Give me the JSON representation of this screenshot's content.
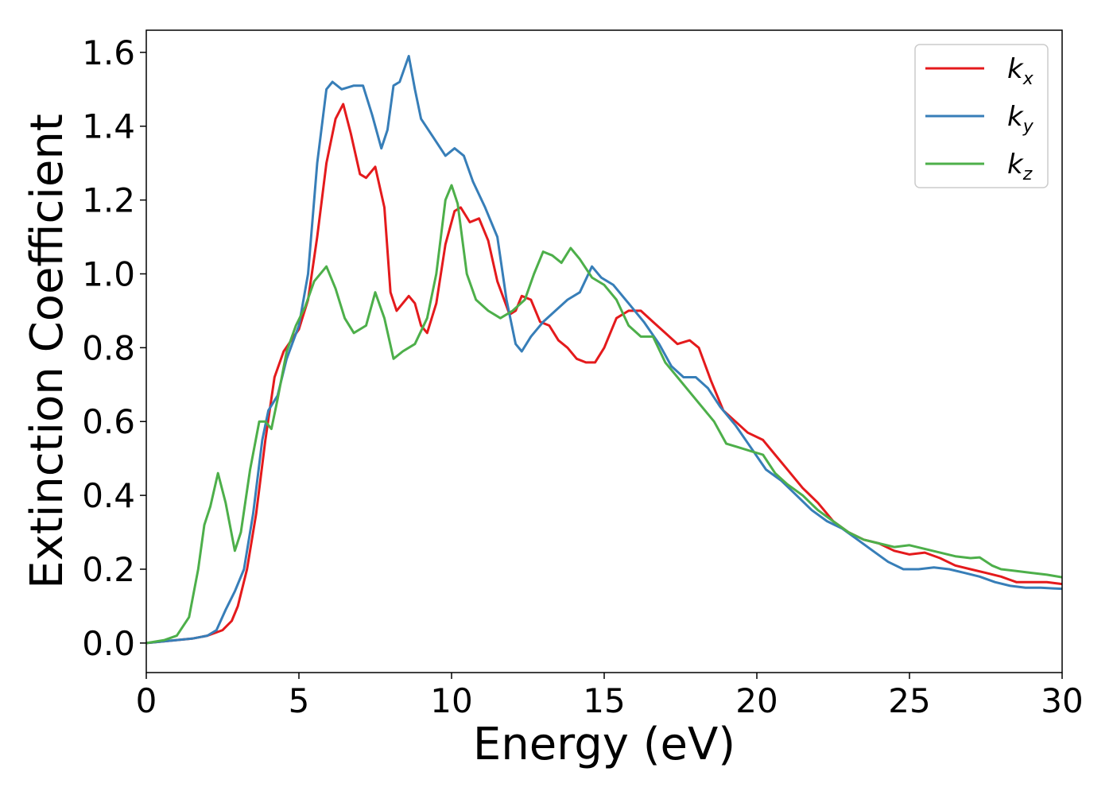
{
  "chart_data": {
    "type": "line",
    "xlabel": "Energy (eV)",
    "ylabel": "Extinction Coefficient",
    "xlim": [
      0,
      30
    ],
    "ylim": [
      -0.08,
      1.66
    ],
    "xticks": [
      0,
      5,
      10,
      15,
      20,
      25,
      30
    ],
    "xtick_labels": [
      "0",
      "5",
      "10",
      "15",
      "20",
      "25",
      "30"
    ],
    "yticks": [
      0.0,
      0.2,
      0.4,
      0.6,
      0.8,
      1.0,
      1.2,
      1.4,
      1.6
    ],
    "ytick_labels": [
      "0.0",
      "0.2",
      "0.4",
      "0.6",
      "0.8",
      "1.0",
      "1.2",
      "1.4",
      "1.6"
    ],
    "grid": false,
    "legend_position": "top-right",
    "series": [
      {
        "name": "k_x",
        "legend_base": "k",
        "legend_sub": "x",
        "color": "#e41a1c",
        "points": [
          [
            0,
            0.0
          ],
          [
            1,
            0.008
          ],
          [
            1.5,
            0.012
          ],
          [
            2,
            0.02
          ],
          [
            2.5,
            0.035
          ],
          [
            2.8,
            0.06
          ],
          [
            3,
            0.1
          ],
          [
            3.3,
            0.2
          ],
          [
            3.6,
            0.35
          ],
          [
            3.9,
            0.55
          ],
          [
            4.2,
            0.72
          ],
          [
            4.5,
            0.79
          ],
          [
            5,
            0.85
          ],
          [
            5.3,
            0.93
          ],
          [
            5.6,
            1.1
          ],
          [
            5.9,
            1.3
          ],
          [
            6.2,
            1.42
          ],
          [
            6.45,
            1.46
          ],
          [
            6.7,
            1.38
          ],
          [
            7.0,
            1.27
          ],
          [
            7.2,
            1.26
          ],
          [
            7.5,
            1.29
          ],
          [
            7.8,
            1.18
          ],
          [
            8.0,
            0.95
          ],
          [
            8.2,
            0.9
          ],
          [
            8.4,
            0.92
          ],
          [
            8.6,
            0.94
          ],
          [
            8.8,
            0.92
          ],
          [
            9.0,
            0.86
          ],
          [
            9.2,
            0.84
          ],
          [
            9.5,
            0.92
          ],
          [
            9.8,
            1.08
          ],
          [
            10.1,
            1.17
          ],
          [
            10.3,
            1.18
          ],
          [
            10.6,
            1.14
          ],
          [
            10.9,
            1.15
          ],
          [
            11.2,
            1.09
          ],
          [
            11.5,
            0.98
          ],
          [
            11.9,
            0.89
          ],
          [
            12.1,
            0.9
          ],
          [
            12.3,
            0.94
          ],
          [
            12.6,
            0.93
          ],
          [
            12.9,
            0.87
          ],
          [
            13.2,
            0.86
          ],
          [
            13.5,
            0.82
          ],
          [
            13.8,
            0.8
          ],
          [
            14.1,
            0.77
          ],
          [
            14.4,
            0.76
          ],
          [
            14.7,
            0.76
          ],
          [
            15.0,
            0.8
          ],
          [
            15.4,
            0.88
          ],
          [
            15.8,
            0.9
          ],
          [
            16.2,
            0.9
          ],
          [
            16.6,
            0.87
          ],
          [
            17.0,
            0.84
          ],
          [
            17.4,
            0.81
          ],
          [
            17.8,
            0.82
          ],
          [
            18.1,
            0.8
          ],
          [
            18.5,
            0.71
          ],
          [
            18.9,
            0.63
          ],
          [
            19.3,
            0.6
          ],
          [
            19.7,
            0.57
          ],
          [
            20.2,
            0.55
          ],
          [
            20.6,
            0.51
          ],
          [
            21.0,
            0.47
          ],
          [
            21.5,
            0.42
          ],
          [
            22.0,
            0.38
          ],
          [
            22.5,
            0.33
          ],
          [
            23.0,
            0.3
          ],
          [
            23.5,
            0.28
          ],
          [
            24.0,
            0.27
          ],
          [
            24.5,
            0.25
          ],
          [
            25.0,
            0.24
          ],
          [
            25.5,
            0.245
          ],
          [
            26.0,
            0.23
          ],
          [
            26.5,
            0.21
          ],
          [
            27.0,
            0.2
          ],
          [
            27.5,
            0.19
          ],
          [
            28.0,
            0.18
          ],
          [
            28.5,
            0.165
          ],
          [
            29.0,
            0.165
          ],
          [
            29.5,
            0.165
          ],
          [
            30.0,
            0.16
          ]
        ]
      },
      {
        "name": "k_y",
        "legend_base": "k",
        "legend_sub": "y",
        "color": "#377eb8",
        "points": [
          [
            0,
            0.0
          ],
          [
            1,
            0.008
          ],
          [
            1.5,
            0.012
          ],
          [
            2,
            0.02
          ],
          [
            2.3,
            0.035
          ],
          [
            2.6,
            0.09
          ],
          [
            2.9,
            0.14
          ],
          [
            3.2,
            0.2
          ],
          [
            3.5,
            0.35
          ],
          [
            3.8,
            0.55
          ],
          [
            4.0,
            0.63
          ],
          [
            4.3,
            0.67
          ],
          [
            4.6,
            0.77
          ],
          [
            5.0,
            0.86
          ],
          [
            5.3,
            1.0
          ],
          [
            5.6,
            1.3
          ],
          [
            5.9,
            1.5
          ],
          [
            6.1,
            1.52
          ],
          [
            6.4,
            1.5
          ],
          [
            6.8,
            1.51
          ],
          [
            7.1,
            1.51
          ],
          [
            7.4,
            1.43
          ],
          [
            7.7,
            1.34
          ],
          [
            7.9,
            1.39
          ],
          [
            8.1,
            1.51
          ],
          [
            8.3,
            1.52
          ],
          [
            8.6,
            1.59
          ],
          [
            8.8,
            1.5
          ],
          [
            9.0,
            1.42
          ],
          [
            9.4,
            1.37
          ],
          [
            9.8,
            1.32
          ],
          [
            10.1,
            1.34
          ],
          [
            10.4,
            1.32
          ],
          [
            10.7,
            1.25
          ],
          [
            11.1,
            1.18
          ],
          [
            11.5,
            1.1
          ],
          [
            11.8,
            0.93
          ],
          [
            12.1,
            0.81
          ],
          [
            12.3,
            0.79
          ],
          [
            12.6,
            0.83
          ],
          [
            13.0,
            0.87
          ],
          [
            13.4,
            0.9
          ],
          [
            13.8,
            0.93
          ],
          [
            14.2,
            0.95
          ],
          [
            14.6,
            1.02
          ],
          [
            14.9,
            0.99
          ],
          [
            15.3,
            0.97
          ],
          [
            15.8,
            0.92
          ],
          [
            16.3,
            0.87
          ],
          [
            16.8,
            0.81
          ],
          [
            17.2,
            0.75
          ],
          [
            17.6,
            0.72
          ],
          [
            18.0,
            0.72
          ],
          [
            18.4,
            0.69
          ],
          [
            18.8,
            0.64
          ],
          [
            19.3,
            0.59
          ],
          [
            19.8,
            0.53
          ],
          [
            20.3,
            0.47
          ],
          [
            20.8,
            0.44
          ],
          [
            21.3,
            0.4
          ],
          [
            21.8,
            0.36
          ],
          [
            22.3,
            0.33
          ],
          [
            22.8,
            0.31
          ],
          [
            23.3,
            0.28
          ],
          [
            23.8,
            0.25
          ],
          [
            24.3,
            0.22
          ],
          [
            24.8,
            0.2
          ],
          [
            25.3,
            0.2
          ],
          [
            25.8,
            0.205
          ],
          [
            26.3,
            0.2
          ],
          [
            26.8,
            0.19
          ],
          [
            27.3,
            0.18
          ],
          [
            27.8,
            0.165
          ],
          [
            28.3,
            0.155
          ],
          [
            28.8,
            0.15
          ],
          [
            29.3,
            0.15
          ],
          [
            29.7,
            0.148
          ],
          [
            30.0,
            0.147
          ]
        ]
      },
      {
        "name": "k_z",
        "legend_base": "k",
        "legend_sub": "z",
        "color": "#4daf4a",
        "points": [
          [
            0,
            0.0
          ],
          [
            0.6,
            0.008
          ],
          [
            1.0,
            0.02
          ],
          [
            1.4,
            0.07
          ],
          [
            1.7,
            0.2
          ],
          [
            1.9,
            0.32
          ],
          [
            2.1,
            0.37
          ],
          [
            2.35,
            0.46
          ],
          [
            2.6,
            0.38
          ],
          [
            2.9,
            0.25
          ],
          [
            3.1,
            0.3
          ],
          [
            3.4,
            0.47
          ],
          [
            3.7,
            0.6
          ],
          [
            3.9,
            0.6
          ],
          [
            4.1,
            0.58
          ],
          [
            4.3,
            0.66
          ],
          [
            4.6,
            0.79
          ],
          [
            4.9,
            0.86
          ],
          [
            5.2,
            0.91
          ],
          [
            5.5,
            0.98
          ],
          [
            5.9,
            1.02
          ],
          [
            6.2,
            0.96
          ],
          [
            6.5,
            0.88
          ],
          [
            6.8,
            0.84
          ],
          [
            7.2,
            0.86
          ],
          [
            7.5,
            0.95
          ],
          [
            7.8,
            0.88
          ],
          [
            8.1,
            0.77
          ],
          [
            8.4,
            0.79
          ],
          [
            8.8,
            0.81
          ],
          [
            9.2,
            0.88
          ],
          [
            9.5,
            1.0
          ],
          [
            9.8,
            1.2
          ],
          [
            10.0,
            1.24
          ],
          [
            10.2,
            1.19
          ],
          [
            10.5,
            1.0
          ],
          [
            10.8,
            0.93
          ],
          [
            11.2,
            0.9
          ],
          [
            11.6,
            0.88
          ],
          [
            12.0,
            0.9
          ],
          [
            12.4,
            0.93
          ],
          [
            12.7,
            1.0
          ],
          [
            13.0,
            1.06
          ],
          [
            13.3,
            1.05
          ],
          [
            13.6,
            1.03
          ],
          [
            13.9,
            1.07
          ],
          [
            14.2,
            1.04
          ],
          [
            14.6,
            0.99
          ],
          [
            15.0,
            0.97
          ],
          [
            15.4,
            0.93
          ],
          [
            15.8,
            0.86
          ],
          [
            16.2,
            0.83
          ],
          [
            16.6,
            0.83
          ],
          [
            17.0,
            0.76
          ],
          [
            17.4,
            0.72
          ],
          [
            17.8,
            0.68
          ],
          [
            18.2,
            0.64
          ],
          [
            18.6,
            0.6
          ],
          [
            19.0,
            0.54
          ],
          [
            19.4,
            0.53
          ],
          [
            19.8,
            0.52
          ],
          [
            20.2,
            0.51
          ],
          [
            20.6,
            0.46
          ],
          [
            21.0,
            0.43
          ],
          [
            21.5,
            0.4
          ],
          [
            22.0,
            0.36
          ],
          [
            22.5,
            0.33
          ],
          [
            23.0,
            0.3
          ],
          [
            23.5,
            0.28
          ],
          [
            24.0,
            0.27
          ],
          [
            24.5,
            0.26
          ],
          [
            25.0,
            0.265
          ],
          [
            25.5,
            0.255
          ],
          [
            26.0,
            0.245
          ],
          [
            26.5,
            0.235
          ],
          [
            27.0,
            0.23
          ],
          [
            27.3,
            0.232
          ],
          [
            27.7,
            0.21
          ],
          [
            28.0,
            0.2
          ],
          [
            28.5,
            0.195
          ],
          [
            29.0,
            0.19
          ],
          [
            29.5,
            0.185
          ],
          [
            30.0,
            0.178
          ]
        ]
      }
    ]
  }
}
